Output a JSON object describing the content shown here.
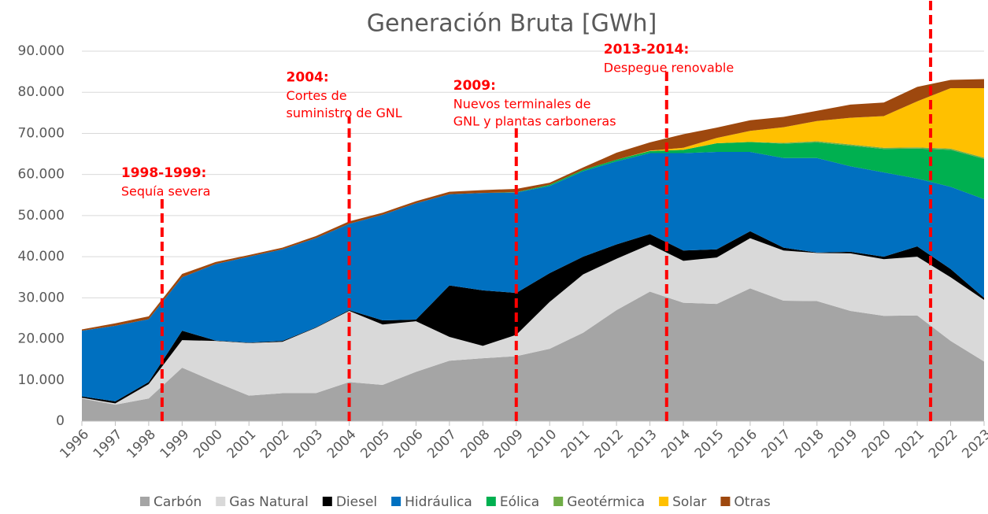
{
  "chart_data": {
    "type": "stacked_area",
    "title": "Generación Bruta [GWh]",
    "x": [
      1996,
      1997,
      1998,
      1999,
      2000,
      2001,
      2002,
      2003,
      2004,
      2005,
      2006,
      2007,
      2008,
      2009,
      2010,
      2011,
      2012,
      2013,
      2014,
      2015,
      2016,
      2017,
      2018,
      2019,
      2020,
      2021,
      2022,
      2023
    ],
    "xlim": [
      1996,
      2023
    ],
    "ylim": [
      0,
      90000
    ],
    "yticks": [
      0,
      {
        "value": 10000,
        "label": "10.000"
      },
      {
        "value": 20000,
        "label": "20.000"
      },
      {
        "value": 30000,
        "label": "30.000"
      },
      {
        "value": 40000,
        "label": "40.000"
      },
      {
        "value": 50000,
        "label": "50.000"
      },
      {
        "value": 60000,
        "label": "60.000"
      },
      {
        "value": 70000,
        "label": "70.000"
      },
      {
        "value": 80000,
        "label": "80.000"
      },
      {
        "value": 90000,
        "label": "90.000"
      }
    ],
    "grid": true,
    "legend": "bottom",
    "series": [
      {
        "name": "Carbón",
        "color": "#a5a5a5",
        "values": [
          5500,
          4000,
          5500,
          13000,
          9500,
          6200,
          6800,
          6800,
          9500,
          8800,
          12000,
          14700,
          15300,
          15800,
          17600,
          21500,
          27000,
          31500,
          28800,
          28500,
          32300,
          29300,
          29200,
          26800,
          25600,
          25700,
          19500,
          14500
        ]
      },
      {
        "name": "Gas Natural",
        "color": "#d9d9d9",
        "values": [
          200,
          300,
          3500,
          6700,
          10000,
          12800,
          12500,
          15900,
          17300,
          14700,
          12300,
          5800,
          3000,
          5200,
          11400,
          14200,
          12500,
          11500,
          10200,
          11300,
          12200,
          12200,
          11700,
          14000,
          13800,
          14300,
          15500,
          15000
        ]
      },
      {
        "name": "Diesel",
        "color": "#000000",
        "values": [
          300,
          500,
          500,
          2300,
          100,
          100,
          200,
          100,
          200,
          1000,
          400,
          12500,
          13500,
          10200,
          7000,
          4300,
          3500,
          2500,
          2500,
          2000,
          1700,
          700,
          100,
          400,
          600,
          2500,
          2000,
          500
        ]
      },
      {
        "name": "Hidráulica",
        "color": "#0070c0",
        "values": [
          16000,
          18400,
          15300,
          13000,
          18600,
          20900,
          22300,
          21700,
          21000,
          25700,
          28300,
          22200,
          23700,
          24400,
          21200,
          20800,
          20200,
          19700,
          23700,
          23700,
          19300,
          21800,
          23000,
          20800,
          20500,
          16500,
          20000,
          24000
        ]
      },
      {
        "name": "Eólica",
        "color": "#00b050",
        "values": [
          0,
          0,
          0,
          0,
          0,
          0,
          0,
          0,
          0,
          0,
          0,
          0,
          0,
          100,
          300,
          300,
          400,
          500,
          800,
          2100,
          2400,
          3500,
          3800,
          5000,
          5700,
          7300,
          9000,
          9800
        ]
      },
      {
        "name": "Geotérmica",
        "color": "#70ad47",
        "values": [
          0,
          0,
          0,
          0,
          0,
          0,
          0,
          0,
          0,
          0,
          0,
          0,
          0,
          0,
          0,
          0,
          0,
          0,
          0,
          0,
          0,
          200,
          300,
          300,
          300,
          300,
          300,
          300
        ]
      },
      {
        "name": "Solar",
        "color": "#ffc000",
        "values": [
          0,
          0,
          0,
          0,
          0,
          0,
          0,
          0,
          0,
          0,
          0,
          0,
          0,
          0,
          0,
          0,
          0,
          100,
          500,
          1300,
          2700,
          3800,
          4900,
          6500,
          7700,
          11200,
          14700,
          16900
        ]
      },
      {
        "name": "Otras",
        "color": "#9e480e",
        "values": [
          300,
          600,
          700,
          800,
          500,
          400,
          400,
          500,
          600,
          500,
          500,
          600,
          700,
          800,
          500,
          600,
          1700,
          2000,
          3300,
          2500,
          2600,
          2500,
          2500,
          3200,
          3300,
          3500,
          2000,
          2200
        ]
      }
    ],
    "annotations": [
      {
        "x": 1998.4,
        "top": 55000,
        "heading": "1998-1999:",
        "lines": [
          "Sequía severa"
        ]
      },
      {
        "x": 2004,
        "top": 74000,
        "heading": "2004:",
        "lines": [
          "Cortes de",
          "suministro de GNL"
        ]
      },
      {
        "x": 2009,
        "top": 72000,
        "heading": "2009:",
        "lines": [
          "Nuevos terminales de",
          "GNL y plantas carboneras"
        ]
      },
      {
        "x": 2013.5,
        "top": 85000,
        "heading": "2013-2014:",
        "lines": [
          "Despegue renovable"
        ]
      },
      {
        "x": 2021.4,
        "top": 103000
      }
    ]
  }
}
